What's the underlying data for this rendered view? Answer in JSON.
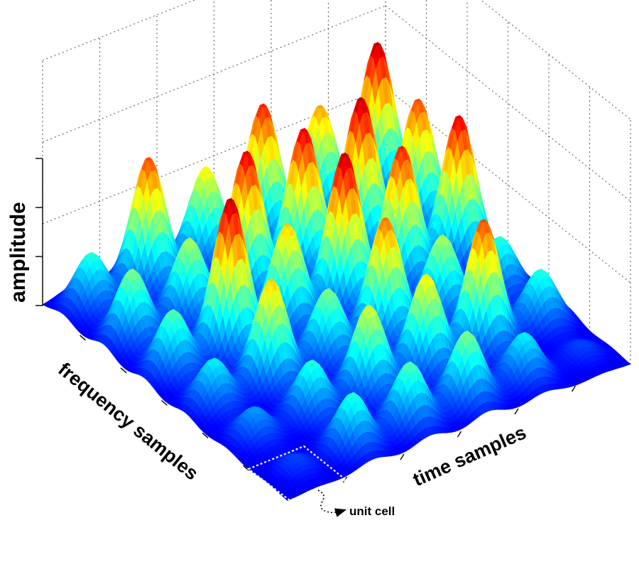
{
  "chart_data": {
    "type": "surface3d",
    "title": "",
    "xlabel": "time samples",
    "ylabel": "frequency samples",
    "zlabel": "amplitude",
    "grid": true,
    "annotation": "unit cell",
    "grid_size": [
      6,
      6
    ],
    "peak_heights": [
      [
        0.1,
        0.35,
        0.4,
        0.45,
        0.3,
        0.1
      ],
      [
        0.2,
        0.35,
        0.55,
        0.6,
        0.8,
        0.35
      ],
      [
        0.3,
        0.65,
        0.45,
        0.75,
        0.5,
        0.35
      ],
      [
        0.4,
        0.95,
        0.65,
        0.95,
        0.85,
        0.9
      ],
      [
        0.45,
        0.5,
        0.9,
        0.9,
        0.95,
        0.8
      ],
      [
        0.35,
        0.8,
        0.6,
        0.85,
        0.7,
        0.95
      ]
    ],
    "colormap": [
      "#00007f",
      "#0000ff",
      "#007fff",
      "#00ffff",
      "#7fff7f",
      "#ffff00",
      "#ff7f00",
      "#ff0000",
      "#7f0000"
    ]
  }
}
